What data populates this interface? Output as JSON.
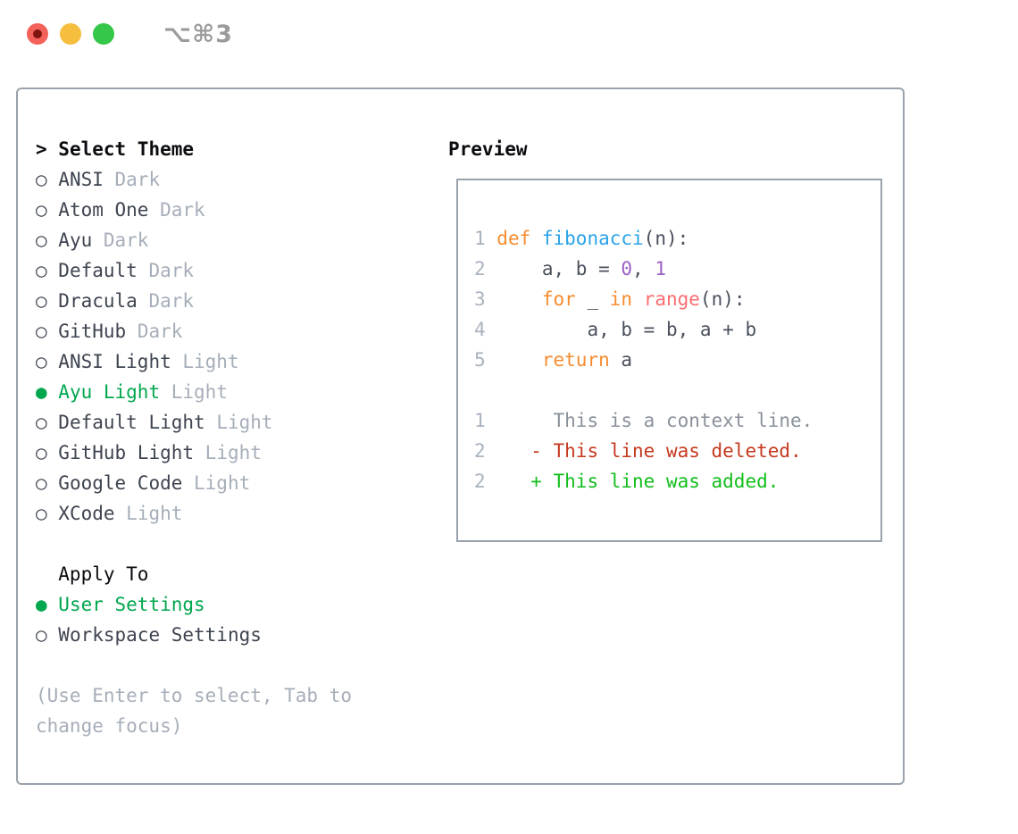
{
  "window": {
    "title": "⌥⌘3",
    "traffic_lights": [
      "close",
      "minimize",
      "zoom"
    ]
  },
  "theme_picker": {
    "header": {
      "prompt": "> ",
      "label": "Select Theme"
    },
    "markers": {
      "selected": "● ",
      "unselected": "○ "
    },
    "items": [
      {
        "name": "ANSI",
        "variant": "Dark",
        "selected": false
      },
      {
        "name": "Atom One",
        "variant": "Dark",
        "selected": false
      },
      {
        "name": "Ayu",
        "variant": "Dark",
        "selected": false
      },
      {
        "name": "Default",
        "variant": "Dark",
        "selected": false
      },
      {
        "name": "Dracula",
        "variant": "Dark",
        "selected": false
      },
      {
        "name": "GitHub",
        "variant": "Dark",
        "selected": false
      },
      {
        "name": "ANSI Light",
        "variant": "Light",
        "selected": false
      },
      {
        "name": "Ayu Light",
        "variant": "Light",
        "selected": true
      },
      {
        "name": "Default Light",
        "variant": "Light",
        "selected": false
      },
      {
        "name": "GitHub Light",
        "variant": "Light",
        "selected": false
      },
      {
        "name": "Google Code",
        "variant": "Light",
        "selected": false
      },
      {
        "name": "XCode",
        "variant": "Light",
        "selected": false
      }
    ]
  },
  "apply_to": {
    "header": "  Apply To",
    "items": [
      {
        "name": "User Settings",
        "selected": true
      },
      {
        "name": "Workspace Settings",
        "selected": false
      }
    ]
  },
  "hint": "(Use Enter to select, Tab to change focus)",
  "preview": {
    "label": "Preview",
    "lines": [
      [
        [
          "ln",
          "1 "
        ],
        [
          "kw",
          "def "
        ],
        [
          "fn",
          "fibonacci"
        ],
        [
          "pl",
          "(n):"
        ]
      ],
      [
        [
          "ln",
          "2 "
        ],
        [
          "pl",
          "    a, b = "
        ],
        [
          "num",
          "0"
        ],
        [
          "pl",
          ", "
        ],
        [
          "num",
          "1"
        ]
      ],
      [
        [
          "ln",
          "3 "
        ],
        [
          "pl",
          "    "
        ],
        [
          "kw",
          "for"
        ],
        [
          "pl",
          " _ "
        ],
        [
          "kw",
          "in"
        ],
        [
          "pl",
          " "
        ],
        [
          "bi",
          "range"
        ],
        [
          "pl",
          "(n):"
        ]
      ],
      [
        [
          "ln",
          "4 "
        ],
        [
          "pl",
          "        a, b = b, a + b"
        ]
      ],
      [
        [
          "ln",
          "5 "
        ],
        [
          "pl",
          "    "
        ],
        [
          "kw",
          "return"
        ],
        [
          "pl",
          " a"
        ]
      ],
      [],
      [
        [
          "ln",
          "1 "
        ],
        [
          "ctx",
          "     This is a context line."
        ]
      ],
      [
        [
          "ln",
          "2 "
        ],
        [
          "del",
          "   - This line was deleted."
        ]
      ],
      [
        [
          "ln",
          "2 "
        ],
        [
          "add",
          "   + This line was added."
        ]
      ]
    ]
  },
  "colors": {
    "accent_green": "#00a74e",
    "keyword_orange": "#f68c2e",
    "function_blue": "#2aa3e8",
    "number_purple": "#9c5fc8",
    "builtin_coral": "#fa6e72",
    "deleted_red": "#c5391f",
    "added_green": "#12be1c",
    "context_gray": "#8a919b",
    "muted_gray": "#a6aeb9",
    "text_dark": "#3e4450",
    "border_gray": "#9aa2ac",
    "line_number_gray": "#a9b2be",
    "code_plain": "#4a505c",
    "traffic_red": "#f4605a",
    "traffic_yellow": "#f6be3f",
    "traffic_green": "#35c749",
    "title_gray": "#9b9b9b"
  }
}
